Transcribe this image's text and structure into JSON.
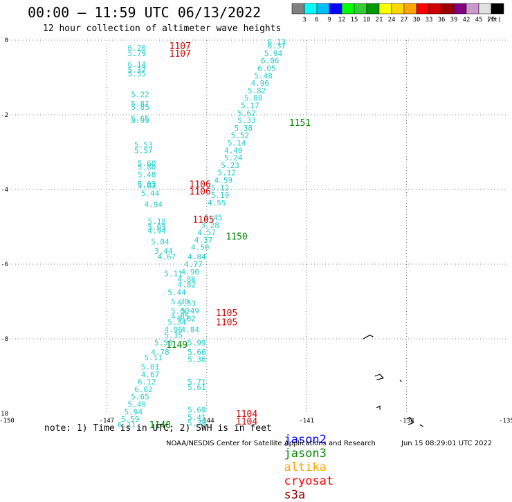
{
  "title": "00:00 – 11:59 UTC 06/13/2022",
  "subtitle": "12 hour collection of altimeter wave heights",
  "colorbar": {
    "unit": "(ft)",
    "colors": [
      "#808080",
      "#00ffff",
      "#00bfff",
      "#0000ff",
      "#00ff00",
      "#32cd32",
      "#009900",
      "#ffff00",
      "#ffd700",
      "#ffa500",
      "#ff0000",
      "#cc0000",
      "#990000",
      "#800080",
      "#cc99cc",
      "#e0e0e0",
      "#000000"
    ],
    "labels": [
      "3",
      "6",
      "9",
      "12",
      "15",
      "18",
      "21",
      "24",
      "27",
      "30",
      "33",
      "36",
      "39",
      "42",
      "45",
      "70"
    ]
  },
  "axes": {
    "x_ticks": [
      "-150",
      "-147",
      "-144",
      "-141",
      "-138",
      "-135"
    ],
    "x_values": [
      -150,
      -147,
      -144,
      -141,
      -138,
      -135
    ],
    "y_ticks": [
      "0",
      "-2",
      "-4",
      "-6",
      "-8",
      "-10"
    ],
    "y_values": [
      0,
      -2,
      -4,
      -6,
      -8,
      -10
    ]
  },
  "track_a": [
    [
      "6.20",
      -146.1,
      -0.2
    ],
    [
      "5.79",
      -146.1,
      -0.35
    ],
    [
      "6.14",
      -146.1,
      -0.65
    ],
    [
      "5.37",
      -146.1,
      -0.8
    ],
    [
      "5.55",
      -146.1,
      -0.9
    ],
    [
      "5.22",
      -146.0,
      -1.45
    ],
    [
      "5.81",
      -146.0,
      -1.7
    ],
    [
      "5.85",
      -146.0,
      -1.8
    ],
    [
      "5.65",
      -146.0,
      -2.1
    ],
    [
      "5.95",
      -146.0,
      -2.15
    ],
    [
      "5.53",
      -145.9,
      -2.8
    ],
    [
      "5.57",
      -145.9,
      -2.95
    ],
    [
      "5.60",
      -145.8,
      -3.3
    ],
    [
      "5.80",
      -145.8,
      -3.4
    ],
    [
      "5.48",
      -145.8,
      -3.6
    ],
    [
      "5.03",
      -145.8,
      -3.85
    ],
    [
      "5.63",
      -145.8,
      -3.9
    ],
    [
      "5.44",
      -145.7,
      -4.1
    ],
    [
      "4.94",
      -145.6,
      -4.4
    ],
    [
      "5.18",
      -145.5,
      -4.85
    ],
    [
      "5.03",
      -145.5,
      -5.0
    ],
    [
      "4.94",
      -145.5,
      -5.1
    ],
    [
      "5.04",
      -145.4,
      -5.4
    ],
    [
      "3.44",
      -145.3,
      -5.65
    ],
    [
      "4.67",
      -145.2,
      -5.8
    ],
    [
      "5.11",
      -145.0,
      -6.25
    ],
    [
      "5.44",
      -144.9,
      -6.75
    ],
    [
      "5.30",
      -144.8,
      -7.0
    ],
    [
      "5.00",
      -144.8,
      -7.25
    ],
    [
      "4.85",
      -144.8,
      -7.4
    ],
    [
      "5.34",
      -144.9,
      -7.55
    ],
    [
      "4.96",
      -145.0,
      -7.75
    ],
    [
      "5.35",
      -145.0,
      -7.9
    ],
    [
      "5.50",
      -145.3,
      -8.1
    ],
    [
      "4.78",
      -145.4,
      -8.35
    ],
    [
      "5.11",
      -145.6,
      -8.5
    ],
    [
      "5.01",
      -145.7,
      -8.75
    ],
    [
      "4.67",
      -145.7,
      -8.95
    ],
    [
      "6.12",
      -145.8,
      -9.15
    ],
    [
      "6.02",
      -145.9,
      -9.35
    ],
    [
      "5.65",
      -146.0,
      -9.55
    ],
    [
      "5.49",
      -146.1,
      -9.75
    ],
    [
      "5.94",
      -146.2,
      -9.95
    ],
    [
      "5.59",
      -146.3,
      -10.15
    ],
    [
      "6.11",
      -146.4,
      -10.3
    ]
  ],
  "track_b": [
    [
      "6.13",
      -141.9,
      -0.05
    ],
    [
      "6.37",
      -141.9,
      -0.15
    ],
    [
      "5.94",
      -142.0,
      -0.35
    ],
    [
      "6.06",
      -142.1,
      -0.55
    ],
    [
      "6.05",
      -142.2,
      -0.75
    ],
    [
      "5.48",
      -142.3,
      -0.95
    ],
    [
      "4.96",
      -142.4,
      -1.15
    ],
    [
      "5.82",
      -142.5,
      -1.35
    ],
    [
      "5.88",
      -142.6,
      -1.55
    ],
    [
      "5.17",
      -142.7,
      -1.75
    ],
    [
      "5.62",
      -142.8,
      -1.95
    ],
    [
      "5.33",
      -142.8,
      -2.15
    ],
    [
      "5.38",
      -142.9,
      -2.35
    ],
    [
      "5.52",
      -143.0,
      -2.55
    ],
    [
      "5.14",
      -143.1,
      -2.75
    ],
    [
      "4.40",
      -143.2,
      -2.95
    ],
    [
      "5.24",
      -143.2,
      -3.15
    ],
    [
      "5.23",
      -143.3,
      -3.35
    ],
    [
      "5.12",
      -143.4,
      -3.55
    ],
    [
      "4.59",
      -143.5,
      -3.75
    ],
    [
      "5.12",
      -143.6,
      -3.95
    ],
    [
      "5.19",
      -143.6,
      -4.15
    ],
    [
      "4.55",
      -143.7,
      -4.35
    ],
    [
      "5.45",
      -143.8,
      -4.75
    ],
    [
      "3.28",
      -143.9,
      -4.95
    ],
    [
      "4.57",
      -144.0,
      -5.15
    ],
    [
      "4.37",
      -144.1,
      -5.35
    ],
    [
      "4.50",
      -144.2,
      -5.55
    ],
    [
      "4.84",
      -144.3,
      -5.8
    ],
    [
      "4.77",
      -144.4,
      -6.0
    ],
    [
      "4.90",
      -144.5,
      -6.2
    ],
    [
      "4.86",
      -144.6,
      -6.4
    ],
    [
      "4.82",
      -144.6,
      -6.55
    ],
    [
      "5.53",
      -144.6,
      -7.05
    ],
    [
      "5.49",
      -144.5,
      -7.25
    ],
    [
      "5.82",
      -144.6,
      -7.45
    ],
    [
      "4.84",
      -144.5,
      -7.75
    ],
    [
      "5.99",
      -144.3,
      -8.1
    ],
    [
      "5.66",
      -144.3,
      -8.35
    ],
    [
      "5.36",
      -144.3,
      -8.55
    ],
    [
      "5.71",
      -144.3,
      -9.15
    ],
    [
      "5.61",
      -144.3,
      -9.3
    ],
    [
      "5.69",
      -144.3,
      -9.9
    ],
    [
      "5.41",
      -144.3,
      -10.1
    ],
    [
      "5.39",
      -144.3,
      -10.25
    ]
  ],
  "pass_labels": [
    {
      "text": "1107",
      "lon": -144.8,
      "lat": -0.15,
      "color": "#cc0000"
    },
    {
      "text": "1107",
      "lon": -144.8,
      "lat": -0.35,
      "color": "#cc0000"
    },
    {
      "text": "1151",
      "lon": -141.2,
      "lat": -2.2,
      "color": "#008800"
    },
    {
      "text": "1106",
      "lon": -144.2,
      "lat": -3.85,
      "color": "#cc0000"
    },
    {
      "text": "1106",
      "lon": -144.2,
      "lat": -4.05,
      "color": "#cc0000"
    },
    {
      "text": "1105",
      "lon": -144.1,
      "lat": -4.8,
      "color": "#cc0000"
    },
    {
      "text": "1150",
      "lon": -143.1,
      "lat": -5.25,
      "color": "#008800"
    },
    {
      "text": "1105",
      "lon": -143.4,
      "lat": -7.3,
      "color": "#cc0000"
    },
    {
      "text": "1105",
      "lon": -143.4,
      "lat": -7.55,
      "color": "#cc0000"
    },
    {
      "text": "1149",
      "lon": -144.9,
      "lat": -8.15,
      "color": "#008800"
    },
    {
      "text": "1148",
      "lon": -145.4,
      "lat": -10.3,
      "color": "#008800"
    },
    {
      "text": "1104",
      "lon": -142.8,
      "lat": -10.0,
      "color": "#cc0000"
    },
    {
      "text": "1104",
      "lon": -142.8,
      "lat": -10.2,
      "color": "#cc0000"
    }
  ],
  "islands": [
    [
      [
        -139.3,
        -8.0
      ],
      [
        -139.2,
        -7.95
      ],
      [
        -139.1,
        -7.9
      ],
      [
        -139.0,
        -7.95
      ]
    ],
    [
      [
        -138.95,
        -9.0
      ],
      [
        -138.8,
        -8.95
      ],
      [
        -138.7,
        -9.05
      ],
      [
        -138.9,
        -9.1
      ]
    ],
    [
      [
        -138.2,
        -9.1
      ],
      [
        -138.15,
        -9.15
      ]
    ],
    [
      [
        -138.9,
        -9.85
      ],
      [
        -138.8,
        -9.8
      ],
      [
        -138.8,
        -9.9
      ]
    ],
    [
      [
        -138.0,
        -10.15
      ],
      [
        -137.9,
        -10.1
      ],
      [
        -137.8,
        -10.25
      ],
      [
        -137.95,
        -10.3
      ]
    ],
    [
      [
        -137.6,
        -10.3
      ],
      [
        -137.5,
        -10.35
      ]
    ]
  ],
  "note": "note: 1) Time is in UTC; 2) SWH is in feet",
  "legend": [
    {
      "name": "jason2",
      "color": "#0000ff"
    },
    {
      "name": "jason3",
      "color": "#008800"
    },
    {
      "name": "altika",
      "color": "#ffa500"
    },
    {
      "name": "cryosat",
      "color": "#ff0000"
    },
    {
      "name": "s3a",
      "color": "#990000"
    }
  ],
  "footer": "NOAA/NESDIS Center for Satellite Applications and Research",
  "footer_date": "Jun 15 08:29:01 UTC 2022"
}
